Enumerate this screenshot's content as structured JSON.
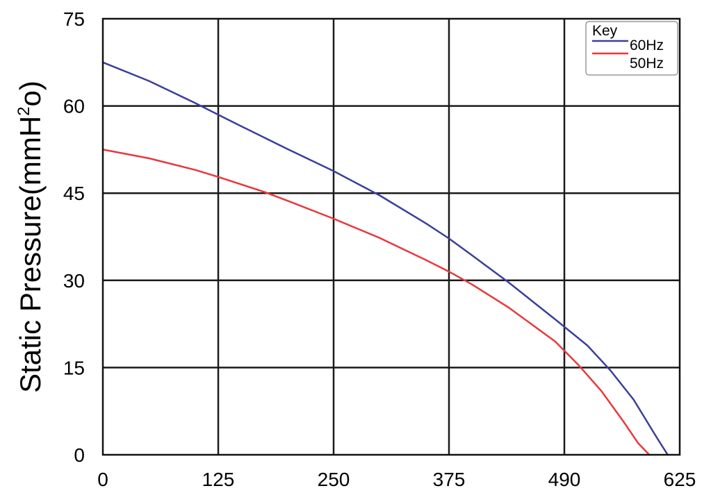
{
  "chart_data": {
    "type": "line",
    "title": "",
    "xlabel": "",
    "ylabel_main": "Static Pressure(mmH",
    "ylabel_sup": "2",
    "ylabel_tail": "o)",
    "x_ticks": [
      "0",
      "125",
      "250",
      "375",
      "490",
      "625"
    ],
    "y_ticks": [
      "0",
      "15",
      "30",
      "45",
      "60",
      "75"
    ],
    "xlim": [
      0,
      625
    ],
    "ylim": [
      0,
      75
    ],
    "grid": true,
    "legend": {
      "title": "Key",
      "position": "top-right"
    },
    "series": [
      {
        "name": "60Hz",
        "color": "#3a3f9a",
        "x": [
          0,
          50,
          100,
          125,
          150,
          200,
          250,
          300,
          350,
          375,
          400,
          440,
          490,
          525,
          550,
          575,
          600,
          612
        ],
        "y": [
          67.5,
          64.3,
          60.5,
          58.5,
          56.5,
          52.6,
          48.8,
          44.6,
          39.8,
          37.2,
          34.3,
          29.6,
          23.3,
          18.8,
          14.5,
          9.5,
          3.0,
          0
        ]
      },
      {
        "name": "50Hz",
        "color": "#e8383d",
        "x": [
          0,
          50,
          100,
          125,
          175,
          200,
          250,
          300,
          350,
          375,
          400,
          440,
          490,
          515,
          540,
          565,
          580,
          592
        ],
        "y": [
          52.5,
          51.0,
          49.0,
          47.8,
          45.2,
          43.7,
          40.6,
          37.3,
          33.5,
          31.5,
          29.3,
          25.3,
          19.5,
          15.5,
          11.0,
          5.5,
          2.0,
          0
        ]
      }
    ]
  }
}
